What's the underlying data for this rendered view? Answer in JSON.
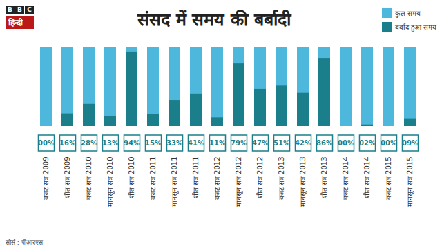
{
  "chart_data": {
    "type": "bar",
    "title": "संसद में समय की बर्बादी",
    "branding": "BBC हिन्दी",
    "source": "सोर्स : पीआरएस",
    "categories": [
      "बजट सत्र 2009",
      "शीत सत्र 2009",
      "बजट सत्र 2010",
      "मानसून सत्र 2010",
      "शीत सत्र 2010",
      "बजट सत्र 2011",
      "मानसून सत्र 2011",
      "शीत सत्र 2011",
      "बजट सत्र 2012",
      "मानसून सत्र 2012",
      "शीत सत्र 2012",
      "बजट सत्र 2013",
      "मानसून सत्र 2013",
      "शीत सत्र 2013",
      "बजट सत्र 2014",
      "शीत सत्र 2014",
      "बजट सत्र 2015",
      "मानसून सत्र 2015"
    ],
    "series": [
      {
        "name": "कुल समय",
        "color": "#4db8dc",
        "values": [
          100,
          100,
          100,
          100,
          100,
          100,
          100,
          100,
          100,
          100,
          100,
          100,
          100,
          100,
          100,
          100,
          100,
          100
        ]
      },
      {
        "name": "बर्बाद हुआ समय",
        "color": "#1a7f8a",
        "values": [
          0,
          16,
          28,
          13,
          94,
          15,
          33,
          41,
          11,
          79,
          47,
          51,
          42,
          86,
          0,
          2,
          0,
          9
        ],
        "value_labels": [
          "00%",
          "16%",
          "28%",
          "13%",
          "94%",
          "15%",
          "33%",
          "41%",
          "11%",
          "79%",
          "47%",
          "51%",
          "42%",
          "86%",
          "00%",
          "02%",
          "00%",
          "09%"
        ]
      }
    ],
    "ylim": [
      0,
      100
    ],
    "stacked": false,
    "data_labels": true,
    "tick_labels": "x",
    "legend": "top-right",
    "grid": false
  }
}
